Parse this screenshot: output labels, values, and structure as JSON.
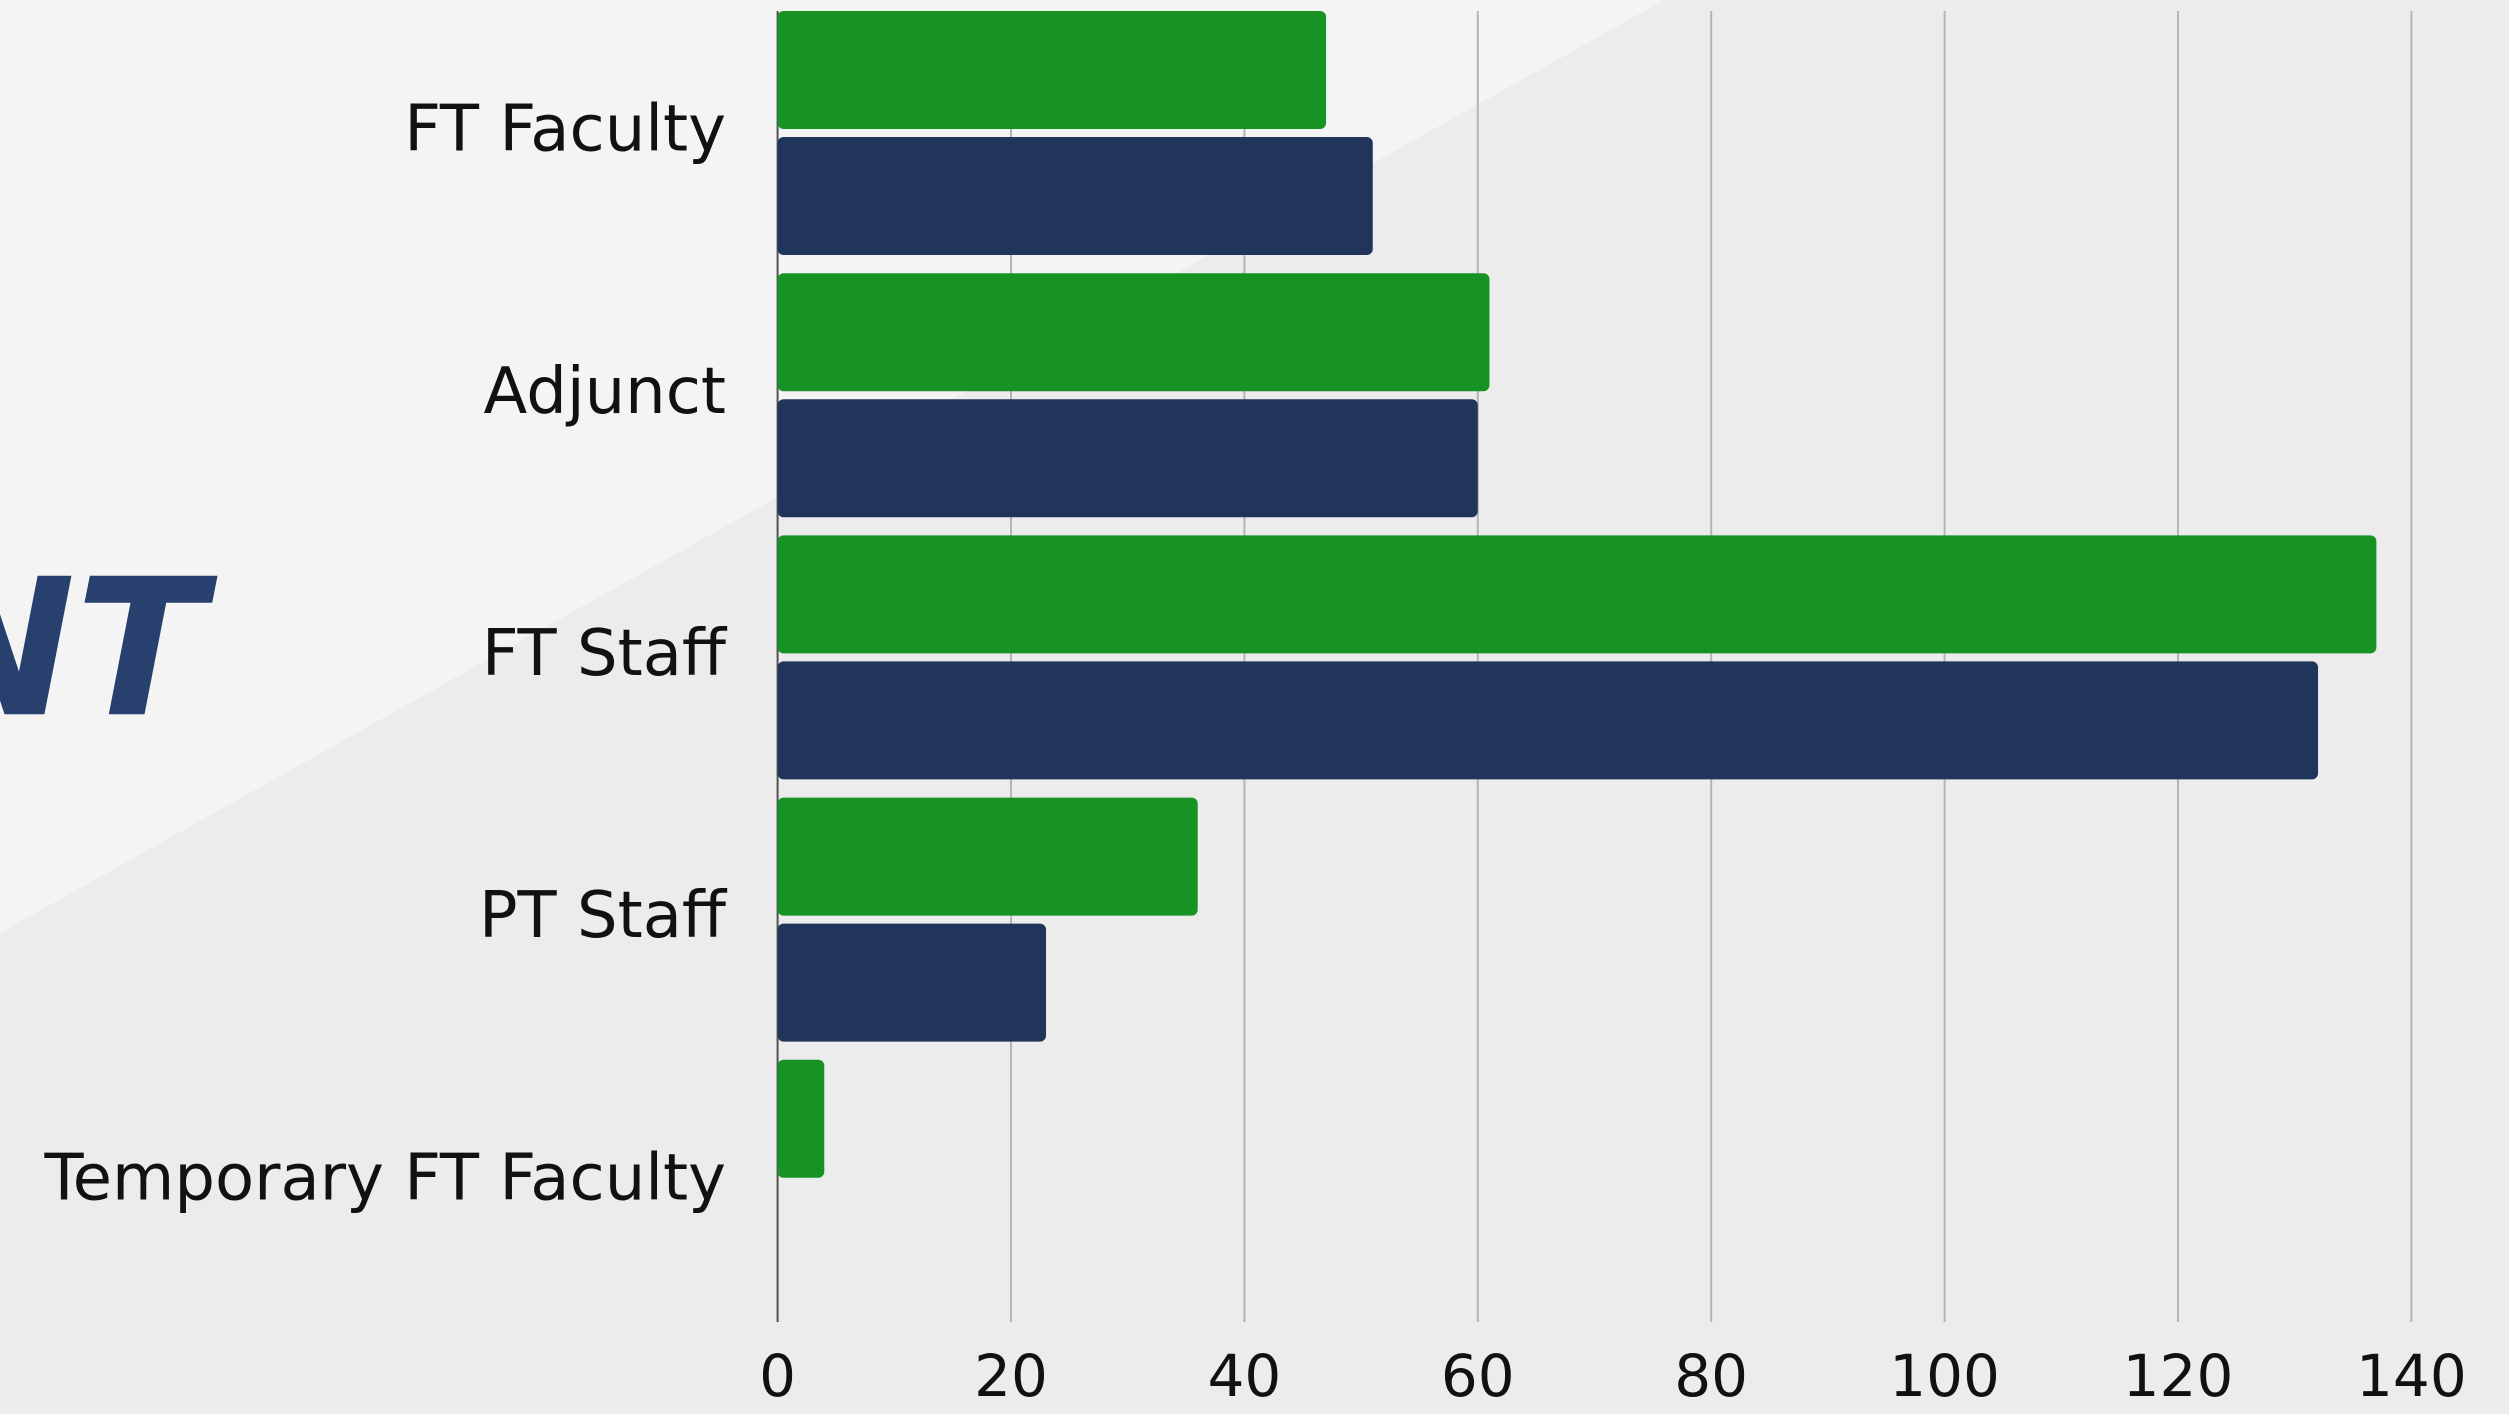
{
  "background_text": "NT",
  "chart_data": {
    "type": "barh",
    "categories": [
      "FT Faculty",
      "Adjunct",
      "FT Staff",
      "PT Staff",
      "Temporary FT Faculty"
    ],
    "series": [
      {
        "color": "#169324",
        "values": [
          47,
          61,
          137,
          36,
          4
        ]
      },
      {
        "color": "#21355a",
        "values": [
          51,
          60,
          132,
          23,
          null
        ]
      }
    ],
    "xlim": [
      0,
      148
    ],
    "xticks": [
      0,
      20,
      40,
      60,
      80,
      100,
      120,
      140
    ],
    "grid": true
  }
}
